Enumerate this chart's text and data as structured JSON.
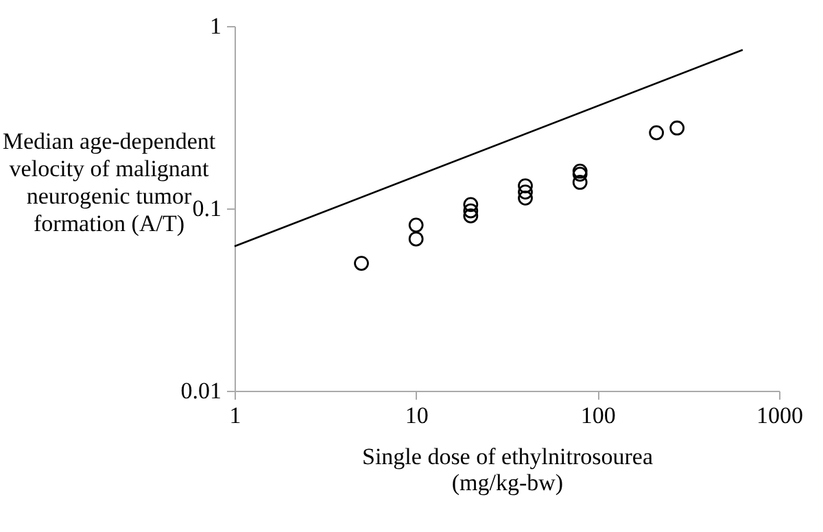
{
  "chart_data": {
    "type": "scatter",
    "xlabel": "Single dose of ethylnitrosourea (mg/kg-bw)",
    "ylabel": "Median age-dependent velocity of malignant neurogenic tumor formation (A/T)",
    "log": "xy",
    "xlim": [
      1,
      1000
    ],
    "ylim": [
      0.01,
      1
    ],
    "xticks": [
      1,
      10,
      100,
      1000
    ],
    "yticks": [
      0.01,
      0.1,
      1
    ],
    "series": [
      {
        "color": "#000000",
        "marker": "circle",
        "x": [
          5,
          10,
          10,
          20,
          20,
          20,
          40,
          40,
          40,
          80,
          80,
          80,
          211,
          274
        ],
        "values": [
          0.05,
          0.081,
          0.068,
          0.105,
          0.097,
          0.091,
          0.133,
          0.123,
          0.114,
          0.16,
          0.154,
          0.139,
          0.26,
          0.276
        ]
      },
      {
        "type": "line",
        "color": "#000000",
        "marker": "none",
        "x": [
          1,
          630
        ],
        "values": [
          0.062,
          0.74
        ]
      }
    ]
  }
}
